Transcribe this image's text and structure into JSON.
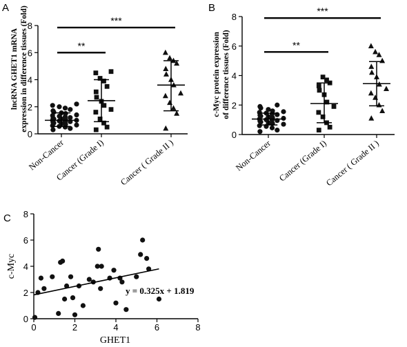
{
  "chart_data": [
    {
      "panel": "A",
      "type": "scatter",
      "ylabel_line1": "lncRNA GHET1 mRNA",
      "ylabel_line2": "expression in difference tissues (Fold)",
      "ylim": [
        0,
        8
      ],
      "yticks": [
        "0",
        "2",
        "4",
        "6",
        "8"
      ],
      "categories": [
        "Non-Cancer",
        "Cancer (Grade I)",
        "Cancer ( Grade II )"
      ],
      "markers": [
        "circle",
        "square",
        "triangle"
      ],
      "series": [
        {
          "values": [
            0.3,
            0.4,
            0.5,
            0.55,
            0.6,
            0.65,
            0.7,
            0.75,
            0.8,
            0.85,
            0.9,
            0.9,
            0.95,
            1.0,
            1.0,
            1.05,
            1.1,
            1.1,
            1.15,
            1.2,
            1.25,
            1.3,
            1.35,
            1.4,
            1.5,
            1.55,
            1.6,
            1.7,
            1.8,
            1.9,
            2.0,
            2.1,
            2.2
          ],
          "mean": 1.0,
          "sd_low": 0.55,
          "sd_high": 1.55
        },
        {
          "values": [
            0.3,
            0.5,
            0.8,
            1.1,
            1.6,
            1.8,
            2.1,
            2.4,
            2.7,
            3.1,
            3.5,
            3.9,
            4.1,
            4.5,
            4.6
          ],
          "mean": 2.45,
          "sd_low": 0.9,
          "sd_high": 4.0
        },
        {
          "values": [
            0.4,
            1.5,
            1.9,
            2.3,
            2.8,
            3.0,
            3.6,
            4.0,
            4.4,
            4.8,
            5.2,
            5.4,
            5.6,
            6.0
          ],
          "mean": 3.6,
          "sd_low": 1.7,
          "sd_high": 5.4
        }
      ],
      "significance": [
        {
          "from": 0,
          "to": 1,
          "label": "**",
          "y": 6.0
        },
        {
          "from": 0,
          "to": 2,
          "label": "***",
          "y": 7.85
        }
      ]
    },
    {
      "panel": "B",
      "type": "scatter",
      "ylabel_line1": "c-Myc protein expression",
      "ylabel_line2": "of difference tissues (Fold)",
      "ylim": [
        0,
        8
      ],
      "yticks": [
        "0",
        "2",
        "4",
        "6",
        "8"
      ],
      "categories": [
        "Non-Cancer",
        "Cancer (Grade I)",
        "Cancer ( Grade II )"
      ],
      "markers": [
        "circle",
        "square",
        "triangle"
      ],
      "series": [
        {
          "values": [
            0.2,
            0.3,
            0.45,
            0.55,
            0.6,
            0.7,
            0.75,
            0.8,
            0.85,
            0.9,
            0.95,
            1.0,
            1.0,
            1.05,
            1.1,
            1.15,
            1.2,
            1.25,
            1.3,
            1.35,
            1.4,
            1.45,
            1.5,
            1.55,
            1.6,
            1.7,
            1.8,
            1.9,
            2.0
          ],
          "mean": 1.05,
          "sd_low": 0.65,
          "sd_high": 1.45
        },
        {
          "values": [
            0.3,
            0.5,
            0.8,
            1.2,
            1.5,
            1.9,
            2.2,
            2.7,
            3.0,
            3.3,
            3.5,
            3.7,
            3.9
          ],
          "mean": 2.1,
          "sd_low": 0.8,
          "sd_high": 3.5
        },
        {
          "values": [
            1.1,
            1.6,
            2.0,
            2.5,
            2.8,
            3.1,
            3.4,
            3.9,
            4.2,
            4.6,
            5.0,
            5.4,
            5.6,
            6.0
          ],
          "mean": 3.45,
          "sd_low": 1.95,
          "sd_high": 4.95
        }
      ],
      "significance": [
        {
          "from": 0,
          "to": 1,
          "label": "**",
          "y": 5.6
        },
        {
          "from": 0,
          "to": 2,
          "label": "***",
          "y": 7.9
        }
      ]
    },
    {
      "panel": "C",
      "type": "scatter",
      "xlabel": "GHET1",
      "ylabel": "c-Myc",
      "xlim": [
        0,
        8
      ],
      "ylim": [
        0,
        8
      ],
      "xticks": [
        "0",
        "2",
        "4",
        "6",
        "8"
      ],
      "yticks": [
        "0",
        "2",
        "4",
        "6",
        "8"
      ],
      "points": [
        [
          0.05,
          0.1
        ],
        [
          0.2,
          2.0
        ],
        [
          0.35,
          3.1
        ],
        [
          0.5,
          2.3
        ],
        [
          0.9,
          3.2
        ],
        [
          1.2,
          0.4
        ],
        [
          1.3,
          4.3
        ],
        [
          1.4,
          4.4
        ],
        [
          1.5,
          1.5
        ],
        [
          1.6,
          2.5
        ],
        [
          1.8,
          3.2
        ],
        [
          1.9,
          1.6
        ],
        [
          2.0,
          0.3
        ],
        [
          2.2,
          2.5
        ],
        [
          2.4,
          1.0
        ],
        [
          2.7,
          3.0
        ],
        [
          2.9,
          2.8
        ],
        [
          3.1,
          4.0
        ],
        [
          3.15,
          5.3
        ],
        [
          3.25,
          2.3
        ],
        [
          3.3,
          4.0
        ],
        [
          3.7,
          3.1
        ],
        [
          3.9,
          3.7
        ],
        [
          4.0,
          1.2
        ],
        [
          4.2,
          3.1
        ],
        [
          4.3,
          2.8
        ],
        [
          4.5,
          0.7
        ],
        [
          5.0,
          3.2
        ],
        [
          5.2,
          4.9
        ],
        [
          5.3,
          6.0
        ],
        [
          5.5,
          4.6
        ],
        [
          5.6,
          3.8
        ],
        [
          6.1,
          1.5
        ]
      ],
      "fit": {
        "slope": 0.325,
        "intercept": 1.819,
        "x_range": [
          0,
          6.1
        ],
        "label": "y = 0.325x + 1.819"
      }
    }
  ],
  "panels": {
    "a": "A",
    "b": "B",
    "c": "C"
  }
}
